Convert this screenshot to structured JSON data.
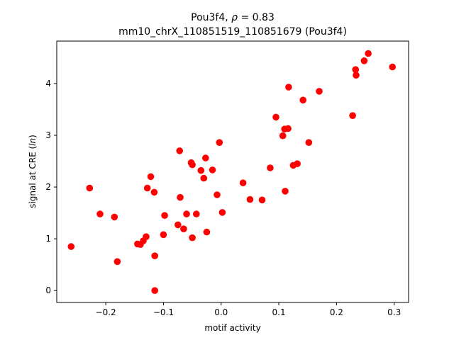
{
  "chart_data": {
    "type": "scatter",
    "title_line1_prefix": "Pou3f4, ",
    "title_line1_symbol": "ρ",
    "title_line1_suffix": " = 0.83",
    "title_line2": "mm10_chrX_110851519_110851679 (Pou3f4)",
    "xlabel": "motif activity",
    "ylabel_prefix": "signal at CRE (",
    "ylabel_italic": "ln",
    "ylabel_suffix": ")",
    "xlim": [
      -0.285,
      0.325
    ],
    "ylim": [
      -0.23,
      4.82
    ],
    "xticks": [
      -0.2,
      -0.1,
      0.0,
      0.1,
      0.2,
      0.3
    ],
    "xtick_labels": [
      "−0.2",
      "−0.1",
      "0.0",
      "0.1",
      "0.2",
      "0.3"
    ],
    "yticks": [
      0,
      1,
      2,
      3,
      4
    ],
    "ytick_labels": [
      "0",
      "1",
      "2",
      "3",
      "4"
    ],
    "point_color": "#ff0000",
    "points": [
      {
        "x": -0.26,
        "y": 0.85
      },
      {
        "x": -0.228,
        "y": 1.98
      },
      {
        "x": -0.21,
        "y": 1.48
      },
      {
        "x": -0.185,
        "y": 1.42
      },
      {
        "x": -0.18,
        "y": 0.56
      },
      {
        "x": -0.145,
        "y": 0.9
      },
      {
        "x": -0.14,
        "y": 0.89
      },
      {
        "x": -0.135,
        "y": 0.96
      },
      {
        "x": -0.13,
        "y": 1.04
      },
      {
        "x": -0.128,
        "y": 1.98
      },
      {
        "x": -0.122,
        "y": 2.2
      },
      {
        "x": -0.116,
        "y": 1.9
      },
      {
        "x": -0.115,
        "y": 0.67
      },
      {
        "x": -0.115,
        "y": 0.0
      },
      {
        "x": -0.1,
        "y": 1.08
      },
      {
        "x": -0.098,
        "y": 1.45
      },
      {
        "x": -0.075,
        "y": 1.27
      },
      {
        "x": -0.072,
        "y": 2.7
      },
      {
        "x": -0.071,
        "y": 1.8
      },
      {
        "x": -0.065,
        "y": 1.19
      },
      {
        "x": -0.06,
        "y": 1.48
      },
      {
        "x": -0.052,
        "y": 2.47
      },
      {
        "x": -0.05,
        "y": 2.43
      },
      {
        "x": -0.05,
        "y": 1.02
      },
      {
        "x": -0.043,
        "y": 1.48
      },
      {
        "x": -0.035,
        "y": 2.32
      },
      {
        "x": -0.03,
        "y": 2.17
      },
      {
        "x": -0.027,
        "y": 2.56
      },
      {
        "x": -0.025,
        "y": 1.13
      },
      {
        "x": -0.015,
        "y": 2.33
      },
      {
        "x": -0.007,
        "y": 1.85
      },
      {
        "x": -0.003,
        "y": 2.86
      },
      {
        "x": 0.002,
        "y": 1.51
      },
      {
        "x": 0.038,
        "y": 2.08
      },
      {
        "x": 0.05,
        "y": 1.76
      },
      {
        "x": 0.071,
        "y": 1.75
      },
      {
        "x": 0.085,
        "y": 2.37
      },
      {
        "x": 0.095,
        "y": 3.35
      },
      {
        "x": 0.107,
        "y": 2.99
      },
      {
        "x": 0.11,
        "y": 3.12
      },
      {
        "x": 0.111,
        "y": 1.92
      },
      {
        "x": 0.116,
        "y": 3.13
      },
      {
        "x": 0.117,
        "y": 3.93
      },
      {
        "x": 0.125,
        "y": 2.42
      },
      {
        "x": 0.132,
        "y": 2.45
      },
      {
        "x": 0.142,
        "y": 3.68
      },
      {
        "x": 0.152,
        "y": 2.86
      },
      {
        "x": 0.17,
        "y": 3.85
      },
      {
        "x": 0.228,
        "y": 3.38
      },
      {
        "x": 0.233,
        "y": 4.27
      },
      {
        "x": 0.234,
        "y": 4.16
      },
      {
        "x": 0.248,
        "y": 4.44
      },
      {
        "x": 0.255,
        "y": 4.58
      },
      {
        "x": 0.297,
        "y": 4.32
      }
    ]
  }
}
